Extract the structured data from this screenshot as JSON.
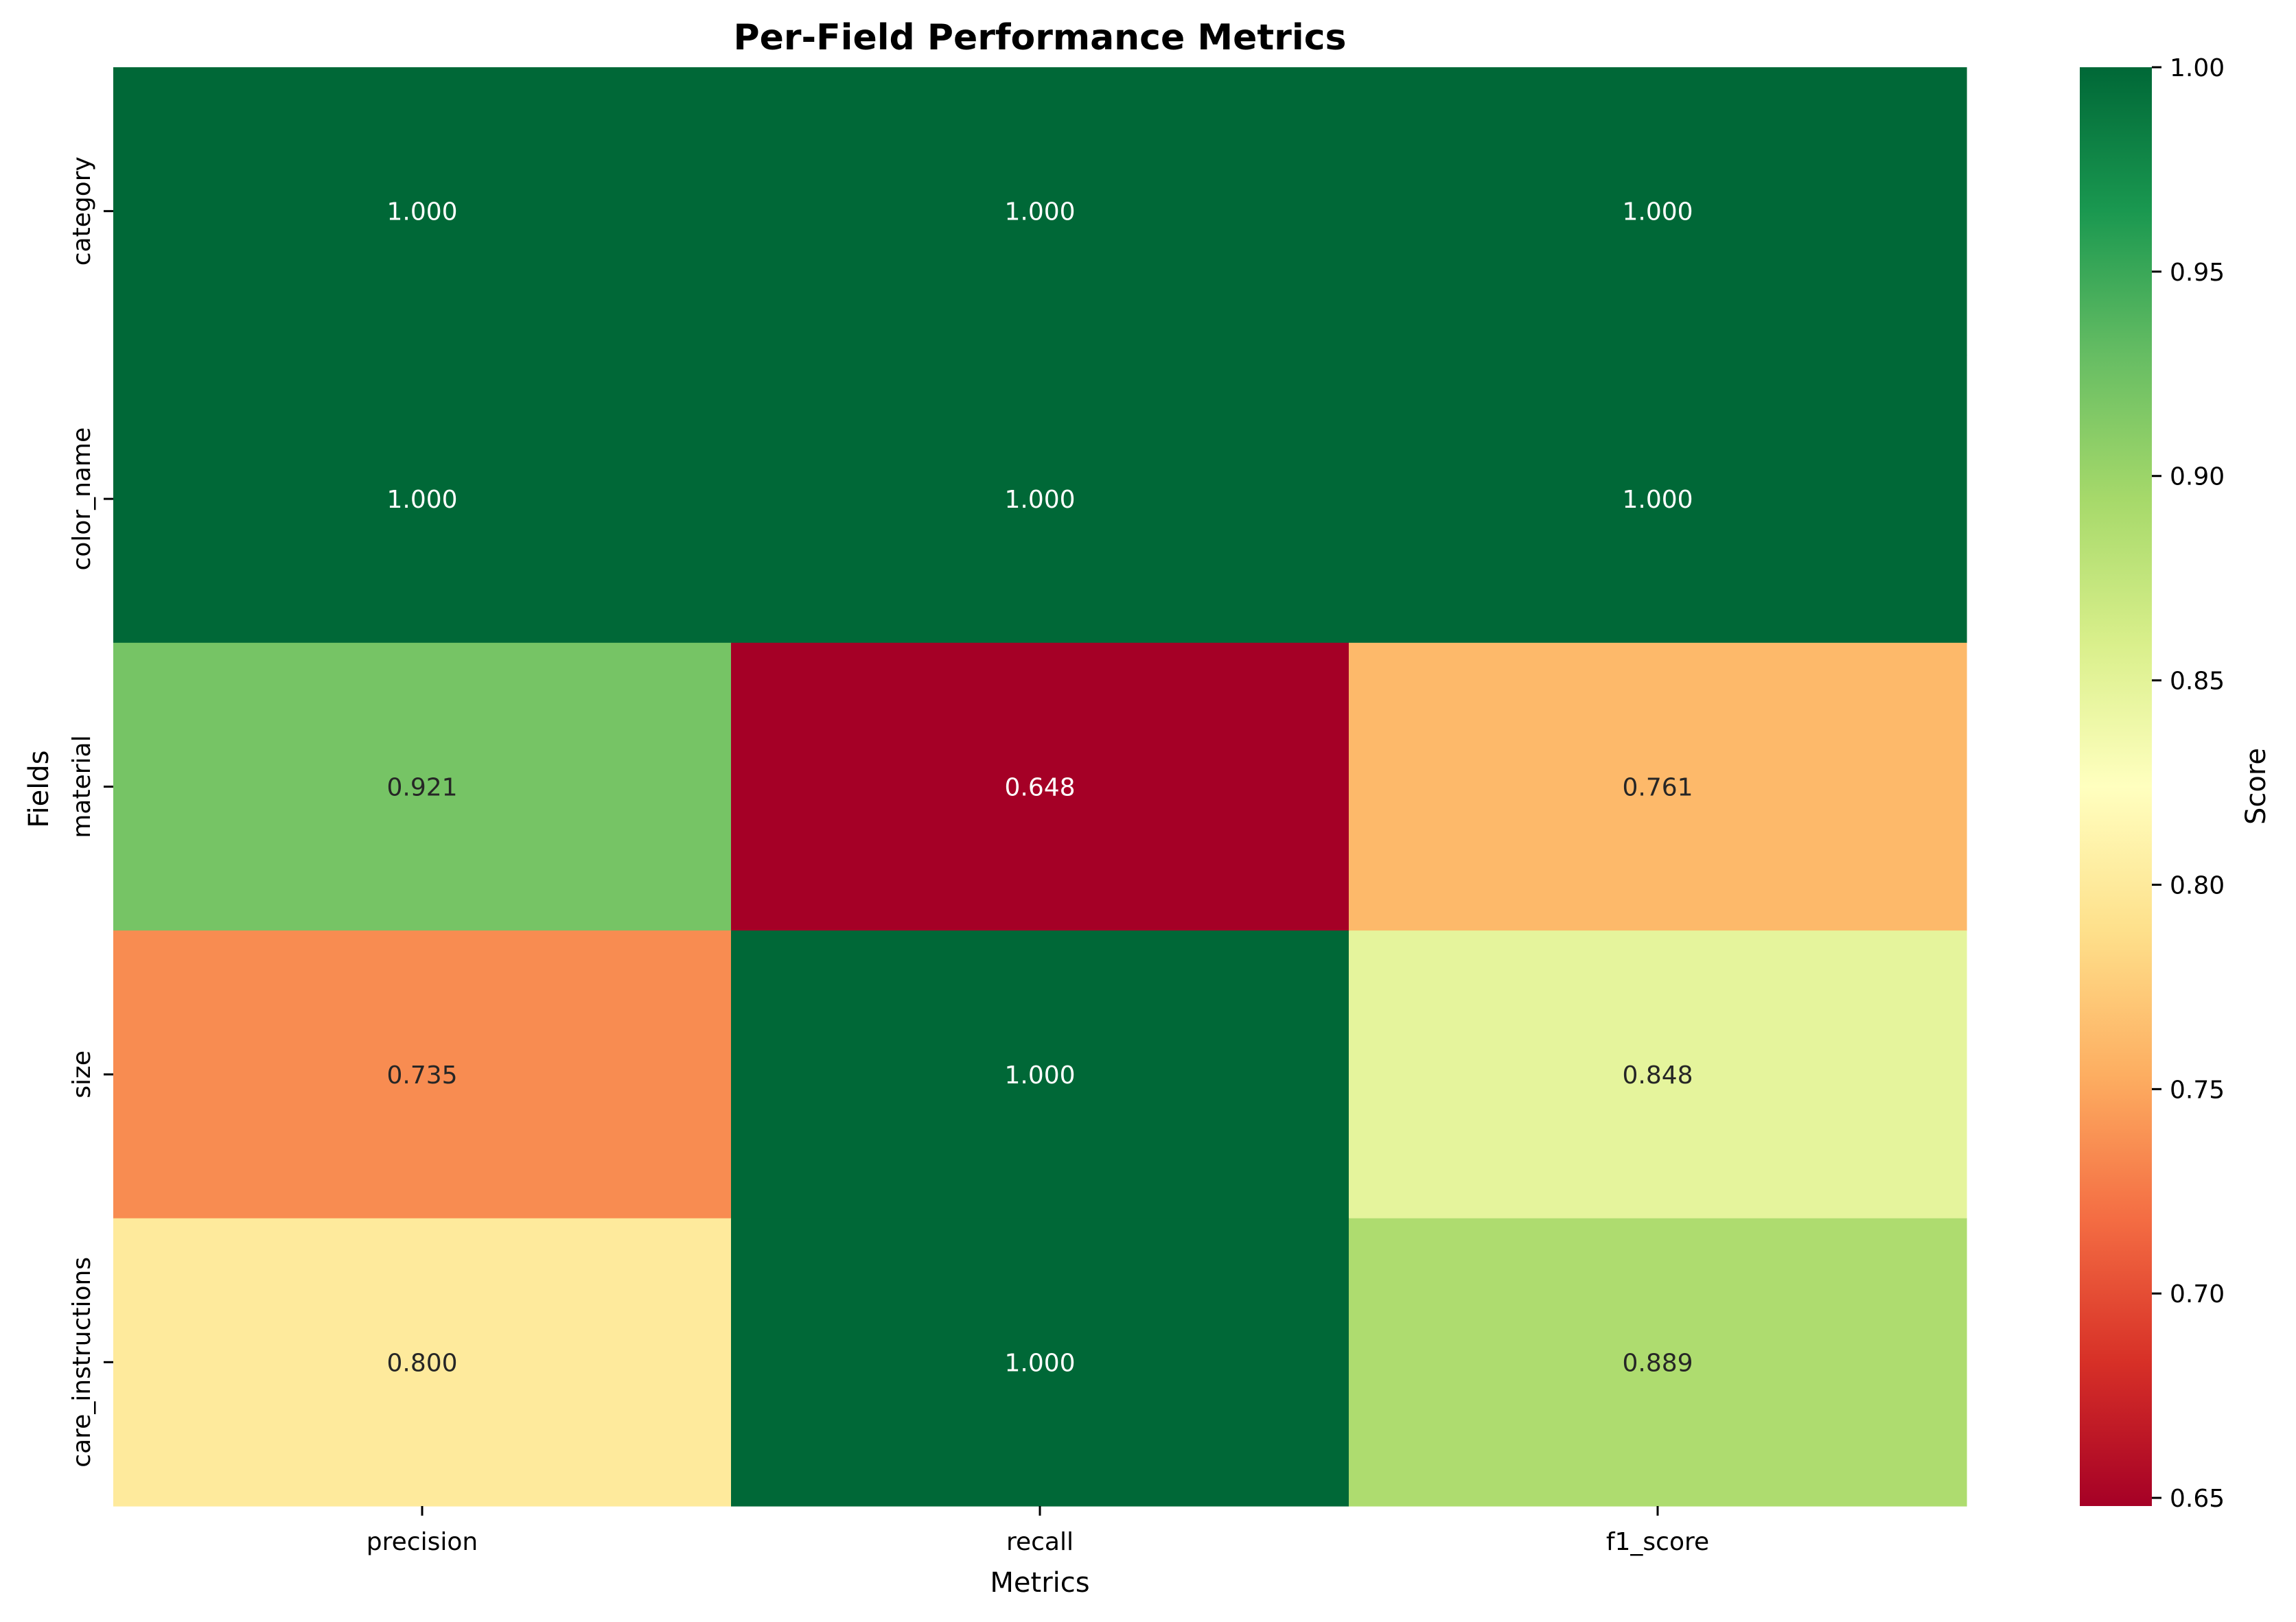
{
  "chart_data": {
    "type": "heatmap",
    "title": "Per-Field Performance Metrics",
    "xlabel": "Metrics",
    "ylabel": "Fields",
    "columns": [
      "precision",
      "recall",
      "f1_score"
    ],
    "rows": [
      "category",
      "color_name",
      "material",
      "size",
      "care_instructions"
    ],
    "values": [
      [
        1.0,
        1.0,
        1.0
      ],
      [
        1.0,
        1.0,
        1.0
      ],
      [
        0.921,
        0.648,
        0.761
      ],
      [
        0.735,
        1.0,
        0.848
      ],
      [
        0.8,
        1.0,
        0.889
      ]
    ],
    "labels": [
      [
        "1.000",
        "1.000",
        "1.000"
      ],
      [
        "1.000",
        "1.000",
        "1.000"
      ],
      [
        "0.921",
        "0.648",
        "0.761"
      ],
      [
        "0.735",
        "1.000",
        "0.848"
      ],
      [
        "0.800",
        "1.000",
        "0.889"
      ]
    ],
    "colorbar": {
      "label": "Score",
      "min": 0.648,
      "max": 1.0,
      "colormap": "RdYlGn",
      "ticks": [
        "0.65",
        "0.70",
        "0.75",
        "0.80",
        "0.85",
        "0.90",
        "0.95",
        "1.00"
      ],
      "tick_values": [
        0.65,
        0.7,
        0.75,
        0.8,
        0.85,
        0.9,
        0.95,
        1.0
      ]
    }
  }
}
